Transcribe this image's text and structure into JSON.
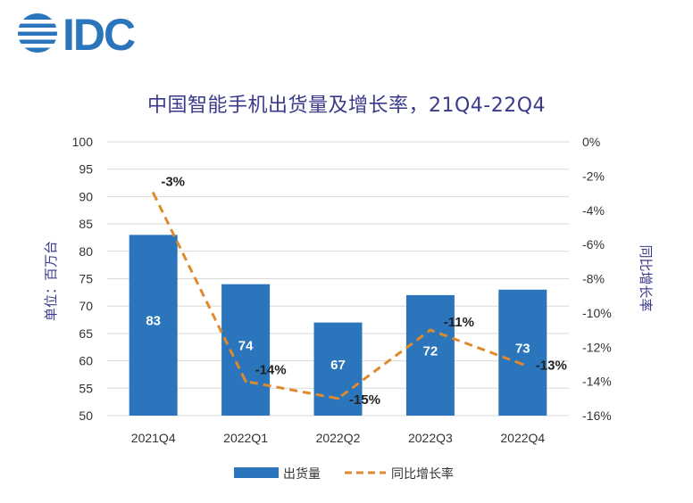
{
  "logo": {
    "text": "IDC"
  },
  "chart_data": {
    "type": "bar",
    "title": "中国智能手机出货量及增长率，21Q4-22Q4",
    "categories": [
      "2021Q4",
      "2022Q1",
      "2022Q2",
      "2022Q3",
      "2022Q4"
    ],
    "series": [
      {
        "name": "出货量",
        "type": "bar",
        "axis": "left",
        "values": [
          83,
          74,
          67,
          72,
          73
        ],
        "labels": [
          "83",
          "74",
          "67",
          "72",
          "73"
        ],
        "color": "#2a75bb"
      },
      {
        "name": "同比增长率",
        "type": "line",
        "style": "dashed",
        "axis": "right",
        "values": [
          -3,
          -14,
          -15,
          -11,
          -13
        ],
        "labels": [
          "-3%",
          "-14%",
          "-15%",
          "-11%",
          "-13%"
        ],
        "color": "#e08a2e"
      }
    ],
    "ylabel": "单位：百万台",
    "y2label": "同比增长率",
    "ylim": [
      50,
      100
    ],
    "y2lim": [
      -16,
      0
    ],
    "yticks": [
      "50",
      "55",
      "60",
      "65",
      "70",
      "75",
      "80",
      "85",
      "90",
      "95",
      "100"
    ],
    "y2ticks": [
      "-16%",
      "-14%",
      "-12%",
      "-10%",
      "-8%",
      "-6%",
      "-4%",
      "-2%",
      "0%"
    ],
    "grid": true,
    "legend": "bottom"
  }
}
